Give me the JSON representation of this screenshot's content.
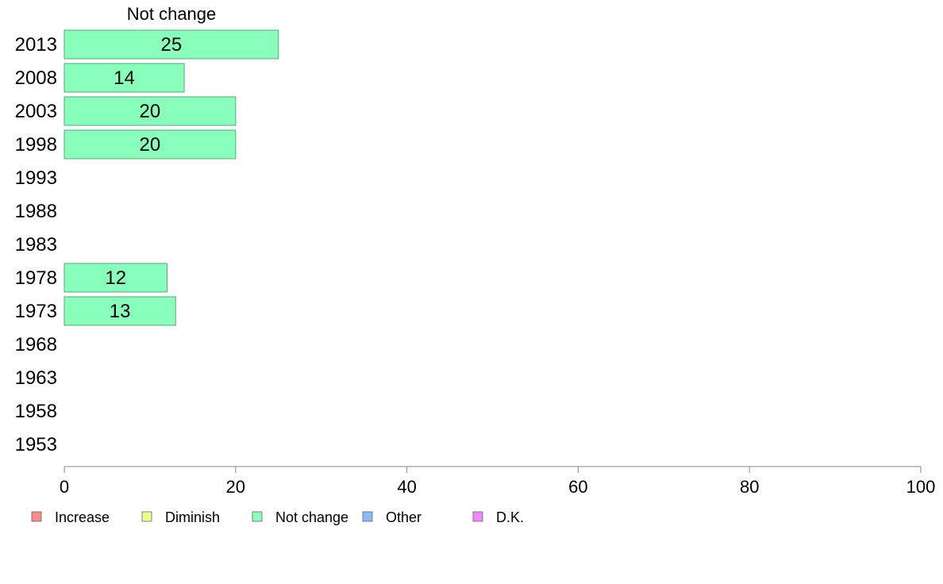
{
  "chart_data": {
    "type": "bar",
    "orientation": "horizontal",
    "title": "Not change",
    "xlim": [
      0,
      100
    ],
    "x_ticks": [
      0,
      20,
      40,
      60,
      80,
      100
    ],
    "categories": [
      "2013",
      "2008",
      "2003",
      "1998",
      "1993",
      "1988",
      "1983",
      "1978",
      "1973",
      "1968",
      "1963",
      "1958",
      "1953"
    ],
    "series": [
      {
        "name": "Not change",
        "color": "#88ffbb",
        "values": [
          25,
          14,
          20,
          20,
          null,
          null,
          null,
          12,
          13,
          null,
          null,
          null,
          null
        ]
      }
    ],
    "legend": {
      "placement": "bottom-left",
      "items": [
        {
          "label": "Increase",
          "color": "#ff8888"
        },
        {
          "label": "Diminish",
          "color": "#eeff88"
        },
        {
          "label": "Not change",
          "color": "#88ffbb"
        },
        {
          "label": "Other",
          "color": "#88bbff"
        },
        {
          "label": "D.K.",
          "color": "#ee88ff"
        }
      ]
    },
    "grid": false
  }
}
